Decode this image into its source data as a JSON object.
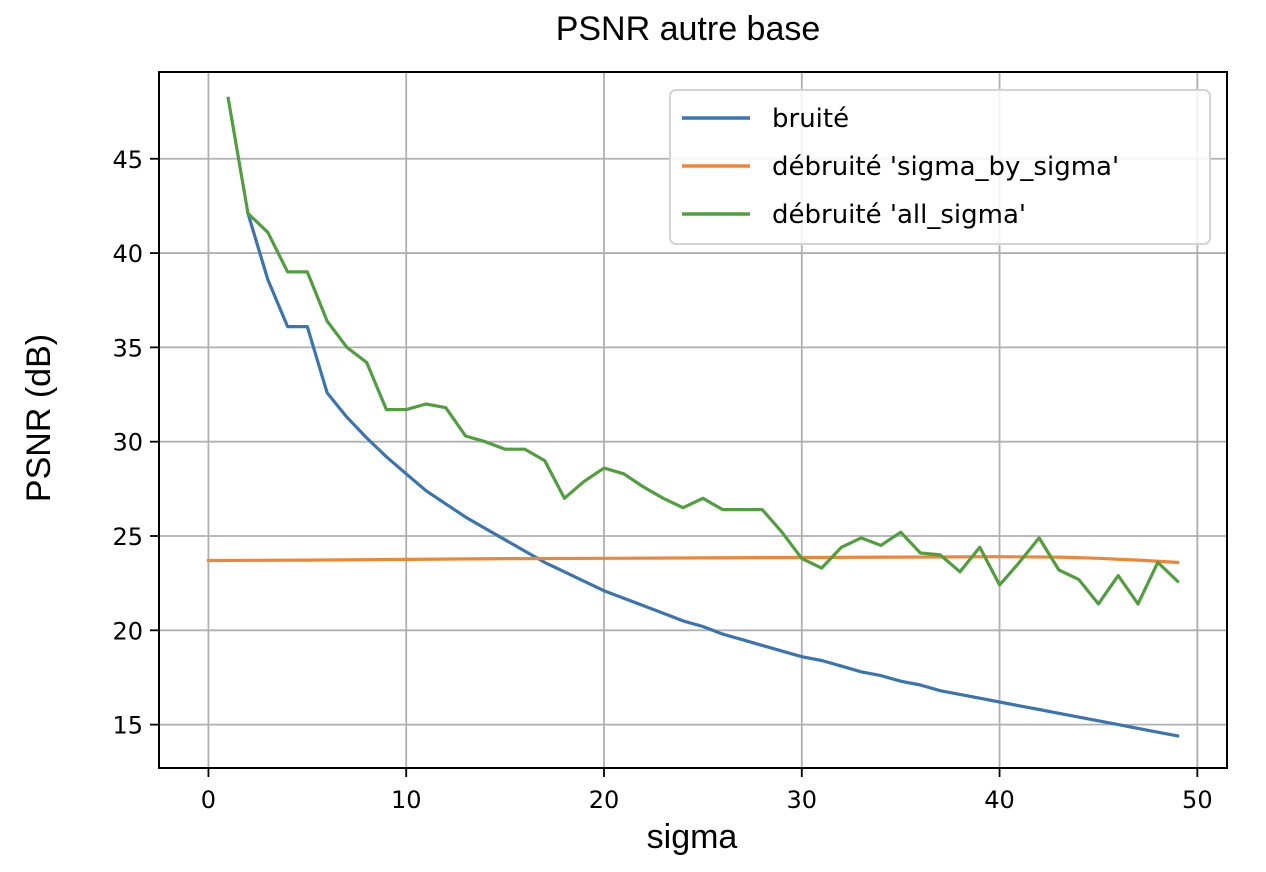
{
  "chart_data": {
    "type": "line",
    "title": "PSNR autre base",
    "xlabel": "sigma",
    "ylabel": "PSNR (dB)",
    "xlim": [
      -2.5,
      51.5
    ],
    "ylim": [
      12.7,
      49.6
    ],
    "xticks": [
      0,
      10,
      20,
      30,
      40,
      50
    ],
    "yticks": [
      15,
      20,
      25,
      30,
      35,
      40,
      45
    ],
    "grid": true,
    "legend_position": "top-right",
    "series": [
      {
        "name": "bruité",
        "color": "#3b75af",
        "x": [
          2,
          3,
          4,
          5,
          6,
          7,
          8,
          9,
          10,
          11,
          12,
          13,
          14,
          15,
          16,
          17,
          18,
          19,
          20,
          21,
          22,
          23,
          24,
          25,
          26,
          27,
          28,
          29,
          30,
          31,
          32,
          33,
          34,
          35,
          36,
          37,
          38,
          39,
          40,
          41,
          42,
          43,
          44,
          45,
          46,
          47,
          48,
          49
        ],
        "y": [
          42.1,
          38.6,
          36.1,
          36.1,
          32.6,
          31.3,
          30.2,
          29.2,
          28.3,
          27.4,
          26.7,
          26.0,
          25.4,
          24.8,
          24.2,
          23.6,
          23.1,
          22.6,
          22.1,
          21.7,
          21.3,
          20.9,
          20.5,
          20.2,
          19.8,
          19.5,
          19.2,
          18.9,
          18.6,
          18.4,
          18.1,
          17.8,
          17.6,
          17.3,
          17.1,
          16.8,
          16.6,
          16.4,
          16.2,
          16.0,
          15.8,
          15.6,
          15.4,
          15.2,
          15.0,
          14.8,
          14.6,
          14.4
        ]
      },
      {
        "name": "débruité 'sigma_by_sigma'",
        "color": "#ef8636",
        "x": [
          0,
          5,
          10,
          15,
          20,
          25,
          30,
          35,
          40,
          43,
          45,
          47,
          49
        ],
        "y": [
          23.7,
          23.72,
          23.76,
          23.8,
          23.82,
          23.84,
          23.86,
          23.88,
          23.9,
          23.88,
          23.82,
          23.72,
          23.6
        ]
      },
      {
        "name": "débruité 'all_sigma'",
        "color": "#519e3e",
        "x": [
          1,
          2,
          3,
          4,
          5,
          6,
          7,
          8,
          9,
          10,
          11,
          12,
          13,
          14,
          15,
          16,
          17,
          18,
          19,
          20,
          21,
          22,
          23,
          24,
          25,
          26,
          27,
          28,
          29,
          30,
          31,
          32,
          33,
          34,
          35,
          36,
          37,
          38,
          39,
          40,
          41,
          42,
          43,
          44,
          45,
          46,
          47,
          48,
          49
        ],
        "y": [
          48.2,
          42.1,
          41.1,
          39.0,
          39.0,
          36.4,
          35.0,
          34.2,
          31.7,
          31.7,
          32.0,
          31.8,
          30.3,
          30.0,
          29.6,
          29.6,
          29.0,
          27.0,
          27.9,
          28.6,
          28.3,
          27.6,
          27.0,
          26.5,
          27.0,
          26.4,
          26.4,
          26.4,
          25.2,
          23.8,
          23.3,
          24.4,
          24.9,
          24.5,
          25.2,
          24.1,
          24.0,
          23.1,
          24.4,
          22.4,
          23.6,
          24.9,
          23.2,
          22.7,
          21.4,
          22.9,
          21.4,
          23.6,
          22.6
        ]
      }
    ]
  }
}
